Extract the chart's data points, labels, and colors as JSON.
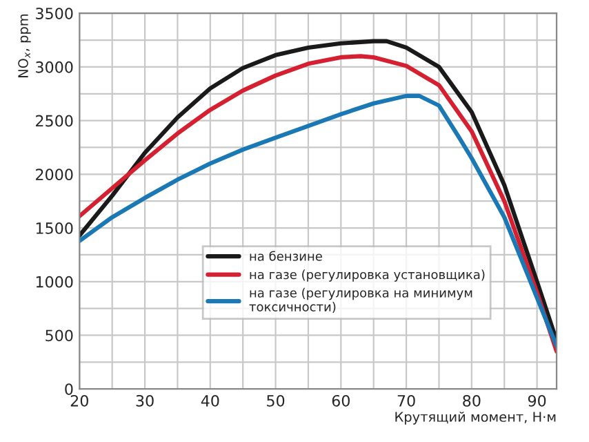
{
  "chart_data": {
    "type": "line",
    "xlabel": "Крутящий момент, Н·м",
    "ylabel": "NO$_{x}$, ppm",
    "xlim": [
      20,
      93
    ],
    "ylim": [
      0,
      3500
    ],
    "xticks": [
      20,
      {
        "value": 25,
        "label": null
      },
      30,
      {
        "value": 35,
        "label": null
      },
      40,
      {
        "value": 45,
        "label": null
      },
      50,
      {
        "value": 55,
        "label": null
      },
      60,
      {
        "value": 65,
        "label": null
      },
      70,
      {
        "value": 75,
        "label": null
      },
      80,
      {
        "value": 85,
        "label": null
      },
      90
    ],
    "yticks": [
      0,
      {
        "value": 250,
        "label": null
      },
      500,
      {
        "value": 750,
        "label": null
      },
      1000,
      {
        "value": 1250,
        "label": null
      },
      1500,
      {
        "value": 1750,
        "label": null
      },
      2000,
      {
        "value": 2250,
        "label": null
      },
      2500,
      {
        "value": 2750,
        "label": null
      },
      3000,
      {
        "value": 3250,
        "label": null
      },
      3500
    ],
    "grid": true,
    "legend": "bottom",
    "line_style": "solid",
    "series": [
      {
        "name": "на бензине",
        "color": "#1a1a1a",
        "x": [
          20,
          25,
          30,
          35,
          40,
          45,
          50,
          55,
          60,
          65,
          67,
          70,
          75,
          80,
          85,
          90,
          93
        ],
        "values": [
          1430,
          1800,
          2200,
          2530,
          2800,
          2990,
          3110,
          3180,
          3220,
          3240,
          3240,
          3180,
          3000,
          2580,
          1900,
          1000,
          450
        ]
      },
      {
        "name": "на газе (регулировка установщика)",
        "color": "#d42030",
        "x": [
          20,
          25,
          30,
          35,
          40,
          45,
          50,
          55,
          60,
          63,
          65,
          70,
          75,
          80,
          85,
          90,
          93
        ],
        "values": [
          1610,
          1870,
          2130,
          2380,
          2600,
          2780,
          2920,
          3030,
          3090,
          3100,
          3090,
          3010,
          2830,
          2400,
          1750,
          900,
          350
        ]
      },
      {
        "name": "на газе (регулировка на минимум\nтоксичности)",
        "color": "#1a78b4",
        "x": [
          20,
          25,
          30,
          35,
          40,
          45,
          50,
          55,
          60,
          65,
          70,
          72,
          75,
          78,
          80,
          85,
          90,
          93
        ],
        "values": [
          1380,
          1600,
          1780,
          1950,
          2100,
          2230,
          2340,
          2450,
          2560,
          2660,
          2730,
          2730,
          2640,
          2350,
          2150,
          1600,
          850,
          400
        ]
      }
    ]
  }
}
